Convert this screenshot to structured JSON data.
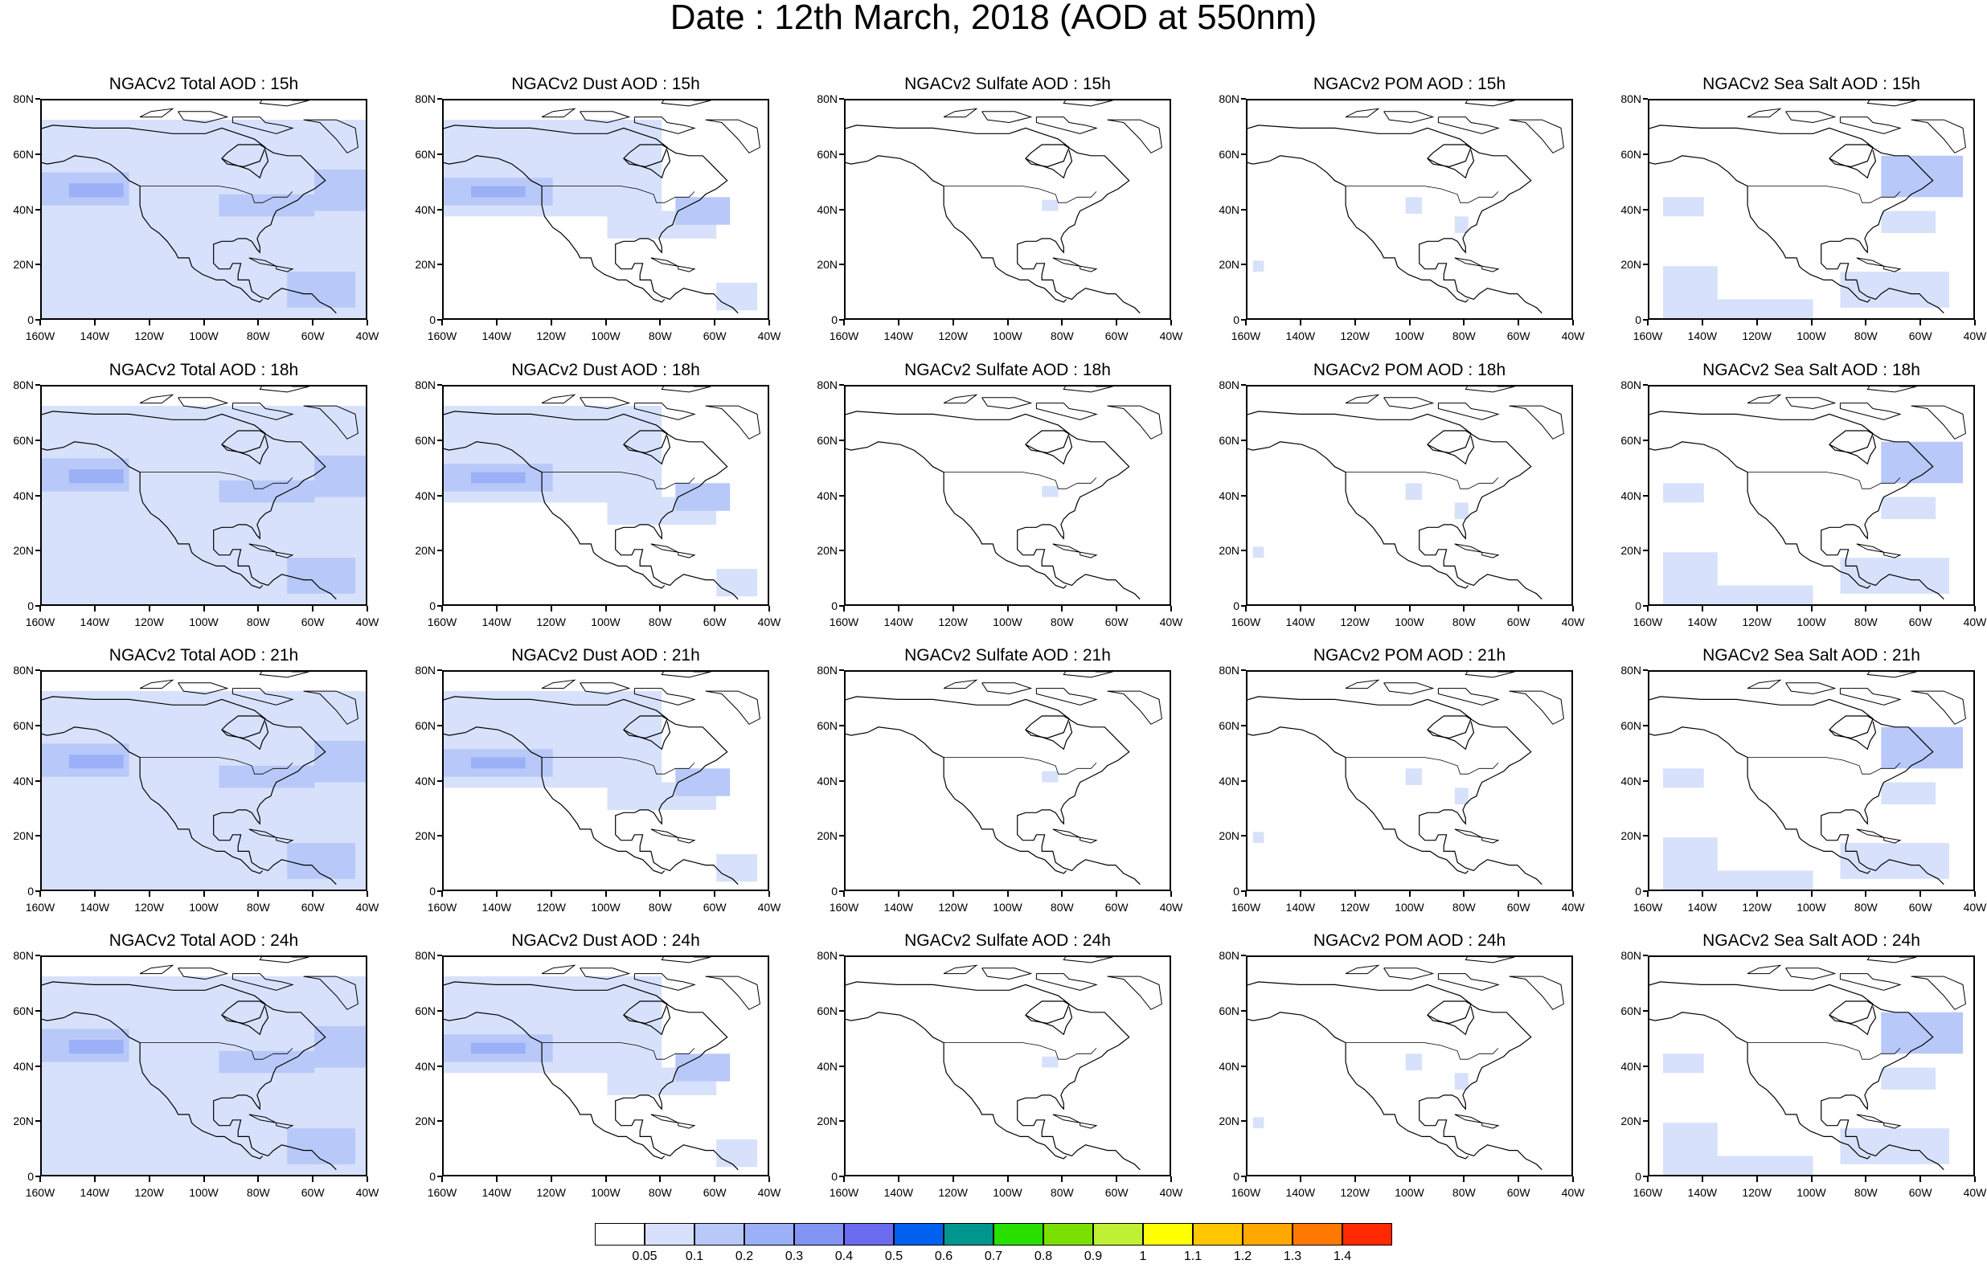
{
  "title": "Date : 12th March, 2018 (AOD at 550nm)",
  "panels": [
    [
      "NGACv2 Total AOD : 15h",
      "NGACv2 Dust AOD : 15h",
      "NGACv2 Sulfate AOD : 15h",
      "NGACv2 POM AOD : 15h",
      "NGACv2 Sea Salt AOD : 15h"
    ],
    [
      "NGACv2 Total AOD : 18h",
      "NGACv2 Dust AOD : 18h",
      "NGACv2 Sulfate AOD : 18h",
      "NGACv2 POM AOD : 18h",
      "NGACv2 Sea Salt AOD : 18h"
    ],
    [
      "NGACv2 Total AOD : 21h",
      "NGACv2 Dust AOD : 21h",
      "NGACv2 Sulfate AOD : 21h",
      "NGACv2 POM AOD : 21h",
      "NGACv2 Sea Salt AOD : 21h"
    ],
    [
      "NGACv2 Total AOD : 24h",
      "NGACv2 Dust AOD : 24h",
      "NGACv2 Sulfate AOD : 24h",
      "NGACv2 POM AOD : 24h",
      "NGACv2 Sea Salt  AOD : 24h"
    ]
  ],
  "lat_labels": [
    "80N",
    "60N",
    "40N",
    "20N",
    "0"
  ],
  "lon_labels": [
    "160W",
    "140W",
    "120W",
    "100W",
    "80W",
    "60W",
    "40W"
  ],
  "colorbar": {
    "colors": [
      "#ffffff",
      "#d7e1fb",
      "#b8c8f8",
      "#9cb0f7",
      "#8394f5",
      "#6b6bef",
      "#0060f0",
      "#00968f",
      "#27e000",
      "#7be000",
      "#bff034",
      "#ffff00",
      "#ffc600",
      "#ffa800",
      "#ff7800",
      "#ff2800"
    ],
    "labels": [
      "0.05",
      "0.1",
      "0.2",
      "0.3",
      "0.4",
      "0.5",
      "0.6",
      "0.7",
      "0.8",
      "0.9",
      "1",
      "1.1",
      "1.2",
      "1.3",
      "1.4"
    ]
  }
}
